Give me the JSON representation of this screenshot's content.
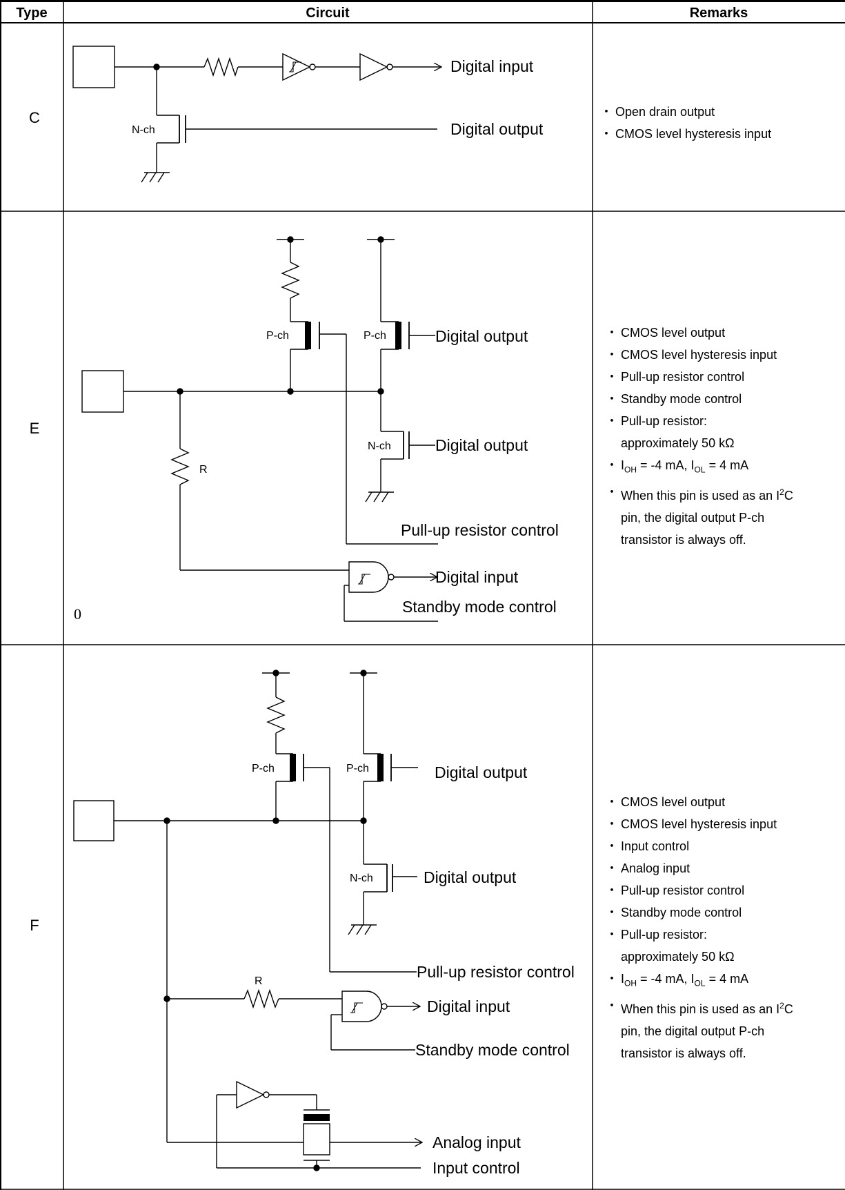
{
  "header": {
    "type": "Type",
    "circuit": "Circuit",
    "remarks": "Remarks"
  },
  "rows": [
    {
      "type": "C",
      "labels": {
        "digital_input": "Digital input",
        "nch": "N-ch",
        "digital_output": "Digital output"
      },
      "remarks": [
        "Open drain output",
        "CMOS level hysteresis input"
      ]
    },
    {
      "type": "E",
      "labels": {
        "pch1": "P-ch",
        "pch2": "P-ch",
        "digital_output_p": "Digital output",
        "nch": "N-ch",
        "digital_output_n": "Digital output",
        "r": "R",
        "pullup_control": "Pull-up resistor control",
        "digital_input": "Digital input",
        "standby_control": "Standby mode control",
        "stray": "0"
      },
      "remarks": {
        "r1": "CMOS level output",
        "r2": "CMOS level hysteresis input",
        "r3": "Pull-up resistor control",
        "r4": "Standby mode control",
        "r5": "Pull-up resistor:",
        "r5b": "approximately 50 kΩ",
        "ioh": "I",
        "ioh_sub": "OH",
        "ioh_rest": " = -4 mA, I",
        "iol_sub": "OL",
        "iol_rest": " = 4 mA",
        "i2c_a": "When this pin is used as an I",
        "i2c_sup": "2",
        "i2c_b": "C",
        "i2c_c": "pin, the digital output P-ch",
        "i2c_d": "transistor is always off."
      }
    },
    {
      "type": "F",
      "labels": {
        "pch1": "P-ch",
        "pch2": "P-ch",
        "digital_output_p": "Digital output",
        "nch": "N-ch",
        "digital_output_n": "Digital output",
        "pullup_control": "Pull-up resistor control",
        "r": "R",
        "digital_input": "Digital input",
        "standby_control": "Standby mode control",
        "analog_input": "Analog input",
        "input_control": "Input control"
      },
      "remarks": {
        "r1": "CMOS level output",
        "r2": "CMOS level hysteresis input",
        "r3": "Input control",
        "r4": "Analog input",
        "r5": "Pull-up resistor control",
        "r6": "Standby mode control",
        "r7": "Pull-up resistor:",
        "r7b": "approximately 50 kΩ",
        "ioh": "I",
        "ioh_sub": "OH",
        "ioh_rest": " = -4 mA, I",
        "iol_sub": "OL",
        "iol_rest": " = 4 mA",
        "i2c_a": "When this pin is used as an I",
        "i2c_sup": "2",
        "i2c_b": "C",
        "i2c_c": "pin, the digital output P-ch",
        "i2c_d": "transistor is always off."
      }
    }
  ],
  "bullet": "・"
}
